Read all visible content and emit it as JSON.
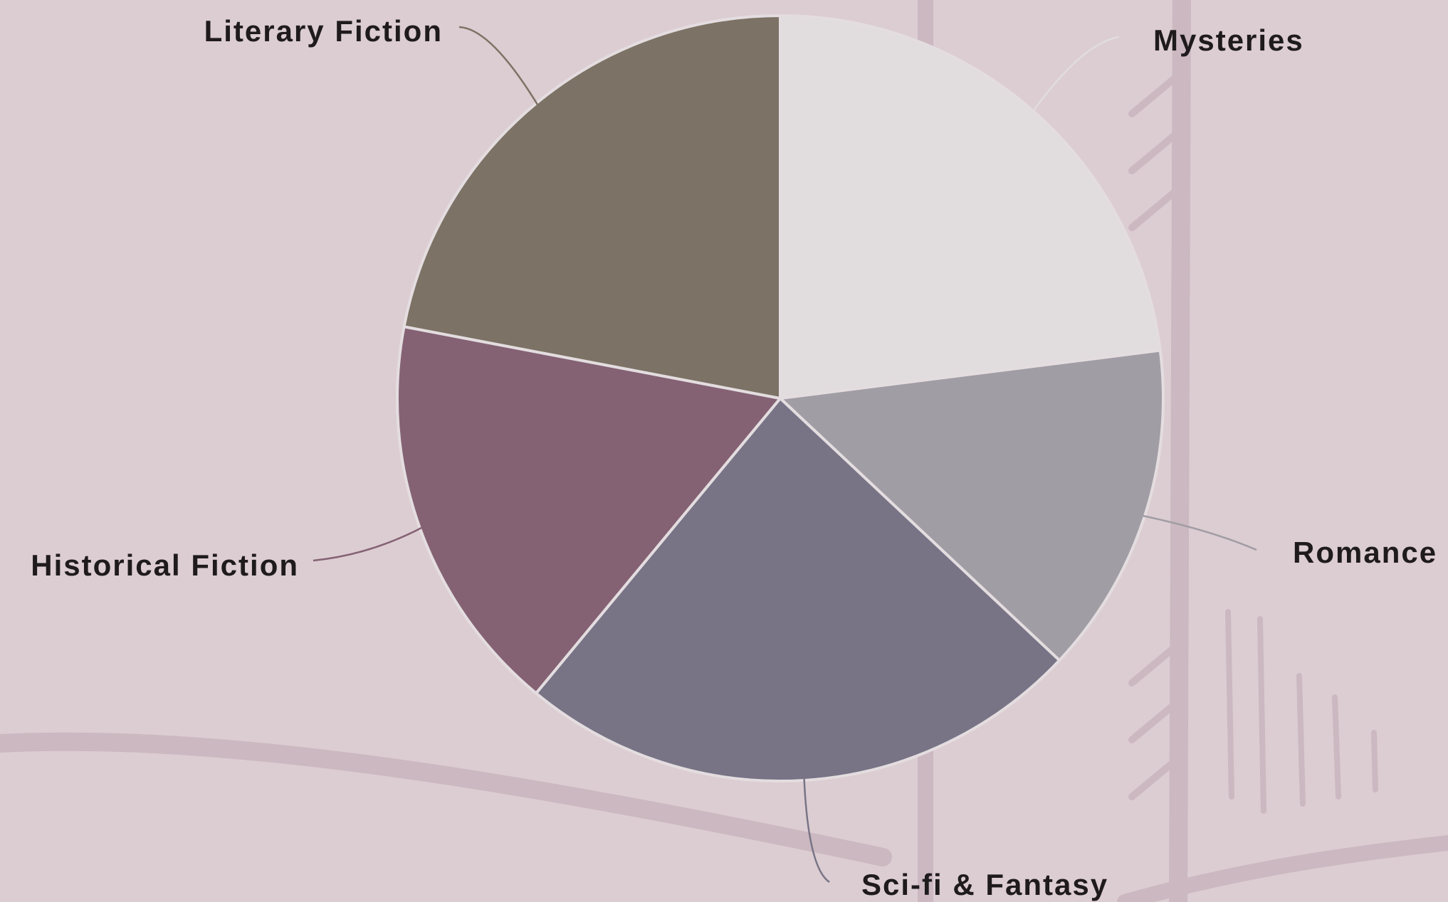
{
  "chart_data": {
    "type": "pie",
    "categories": [
      "Mysteries",
      "Romance",
      "Sci-fi & Fantasy",
      "Historical Fiction",
      "Literary Fiction"
    ],
    "values": [
      23,
      14,
      24,
      17,
      22
    ],
    "colors": [
      "#e1dcdd",
      "#a19da4",
      "#787486",
      "#846273",
      "#7c7265"
    ]
  }
}
